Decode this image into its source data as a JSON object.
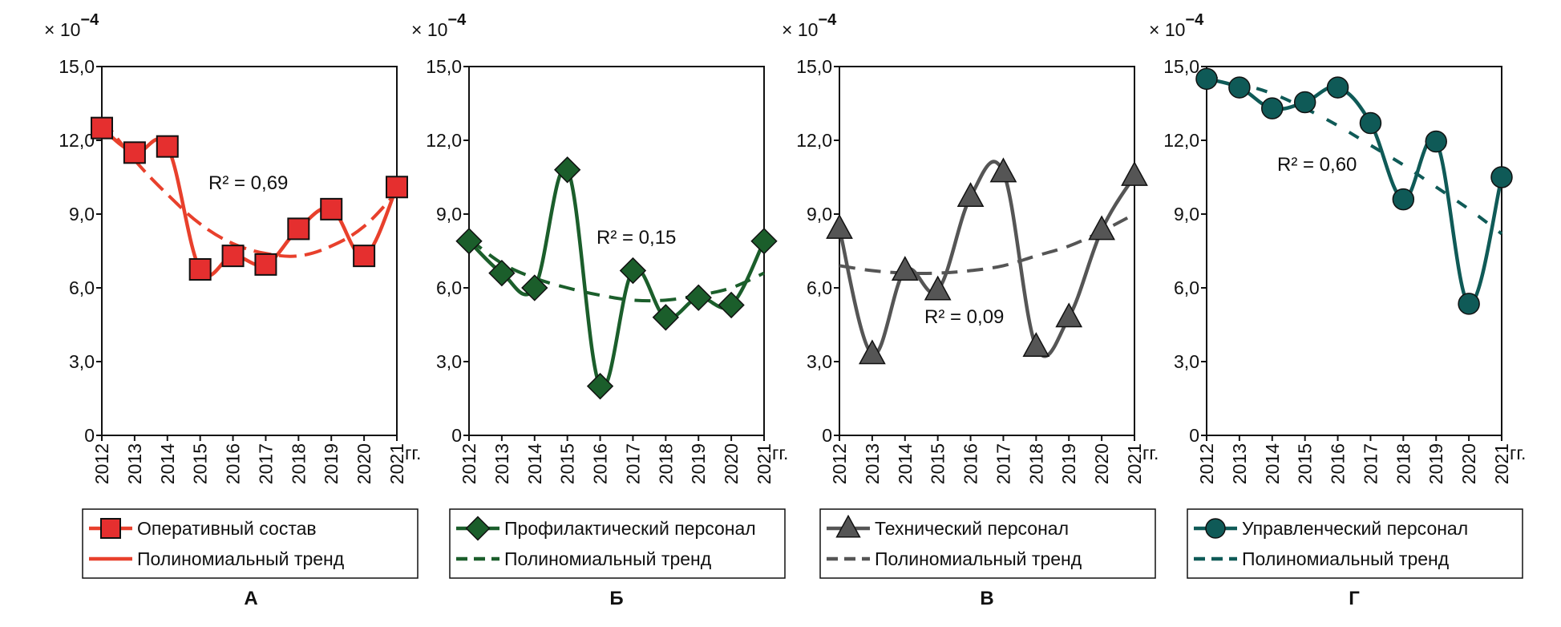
{
  "chart_data": [
    {
      "type": "line",
      "panel_label": "А",
      "multiplier_label": "× 10",
      "multiplier_exponent": "−4",
      "x_unit_label": "гг.",
      "categories": [
        "2012",
        "2013",
        "2014",
        "2015",
        "2016",
        "2017",
        "2018",
        "2019",
        "2020",
        "2021"
      ],
      "ylim": [
        0,
        15
      ],
      "y_ticks": [
        0,
        3,
        6,
        9,
        12,
        15
      ],
      "y_tick_labels": [
        "0",
        "3,0",
        "6,0",
        "9,0",
        "12,0",
        "15,0"
      ],
      "grid": false,
      "color": "#e8402c",
      "marker_fill": "#e52f2f",
      "marker": "square",
      "annotation": "R² = 0,69",
      "legend_placement": "bottom",
      "series": [
        {
          "name": "Оперативный состав",
          "values": [
            12.5,
            11.5,
            11.75,
            6.75,
            7.3,
            6.95,
            8.4,
            9.2,
            7.3,
            10.1
          ]
        },
        {
          "name": "Полиномиальный тренд",
          "values": [
            12.9,
            11.2,
            9.8,
            8.6,
            7.8,
            7.4,
            7.3,
            7.7,
            8.5,
            9.9
          ]
        }
      ]
    },
    {
      "type": "line",
      "panel_label": "Б",
      "multiplier_label": "× 10",
      "multiplier_exponent": "−4",
      "x_unit_label": "гг.",
      "categories": [
        "2012",
        "2013",
        "2014",
        "2015",
        "2016",
        "2017",
        "2018",
        "2019",
        "2020",
        "2021"
      ],
      "ylim": [
        0,
        15
      ],
      "y_ticks": [
        0,
        3,
        6,
        9,
        12,
        15
      ],
      "y_tick_labels": [
        "0",
        "3,0",
        "6,0",
        "9,0",
        "12,0",
        "15,0"
      ],
      "grid": false,
      "color": "#1b5e2b",
      "marker_fill": "#1b5e2b",
      "marker": "diamond",
      "annotation": "R² = 0,15",
      "legend_placement": "bottom",
      "series": [
        {
          "name": "Профилактический персонал",
          "values": [
            7.9,
            6.6,
            6.0,
            10.8,
            2.0,
            6.7,
            4.8,
            5.6,
            5.3,
            7.9
          ]
        },
        {
          "name": "Полиномиальный тренд",
          "values": [
            8.0,
            7.0,
            6.4,
            6.0,
            5.7,
            5.5,
            5.5,
            5.7,
            6.0,
            6.6
          ]
        }
      ]
    },
    {
      "type": "line",
      "panel_label": "В",
      "multiplier_label": "× 10",
      "multiplier_exponent": "−4",
      "x_unit_label": "гг.",
      "categories": [
        "2012",
        "2013",
        "2014",
        "2015",
        "2016",
        "2017",
        "2018",
        "2019",
        "2020",
        "2021"
      ],
      "ylim": [
        0,
        15
      ],
      "y_ticks": [
        0,
        3,
        6,
        9,
        12,
        15
      ],
      "y_tick_labels": [
        "0",
        "3,0",
        "6,0",
        "9,0",
        "12,0",
        "15,0"
      ],
      "grid": false,
      "color": "#555555",
      "marker_fill": "#555555",
      "marker": "triangle",
      "annotation": "R² = 0,09",
      "legend_placement": "bottom",
      "series": [
        {
          "name": "Технический персонал",
          "values": [
            8.4,
            3.3,
            6.7,
            5.9,
            9.7,
            10.7,
            3.6,
            4.8,
            8.35,
            10.55
          ]
        },
        {
          "name": "Полиномиальный тренд",
          "values": [
            6.9,
            6.7,
            6.6,
            6.6,
            6.7,
            6.9,
            7.3,
            7.7,
            8.3,
            9.0
          ]
        }
      ]
    },
    {
      "type": "line",
      "panel_label": "Г",
      "multiplier_label": "× 10",
      "multiplier_exponent": "−4",
      "x_unit_label": "гг.",
      "categories": [
        "2012",
        "2013",
        "2014",
        "2015",
        "2016",
        "2017",
        "2018",
        "2019",
        "2020",
        "2021"
      ],
      "ylim": [
        0,
        15
      ],
      "y_ticks": [
        0,
        3,
        6,
        9,
        12,
        15
      ],
      "y_tick_labels": [
        "0",
        "3,0",
        "6,0",
        "9,0",
        "12,0",
        "15,0"
      ],
      "grid": false,
      "color": "#0f5a57",
      "marker_fill": "#0f5a57",
      "marker": "circle",
      "annotation": "R² = 0,60",
      "legend_placement": "bottom",
      "series": [
        {
          "name": "Управленческий персонал",
          "values": [
            14.5,
            14.15,
            13.3,
            13.55,
            14.15,
            12.7,
            9.6,
            11.95,
            5.35,
            10.5
          ]
        },
        {
          "name": "Полиномиальный тренд",
          "values": [
            14.6,
            14.3,
            13.9,
            13.3,
            12.6,
            11.8,
            11.0,
            10.1,
            9.2,
            8.2
          ]
        }
      ]
    }
  ]
}
